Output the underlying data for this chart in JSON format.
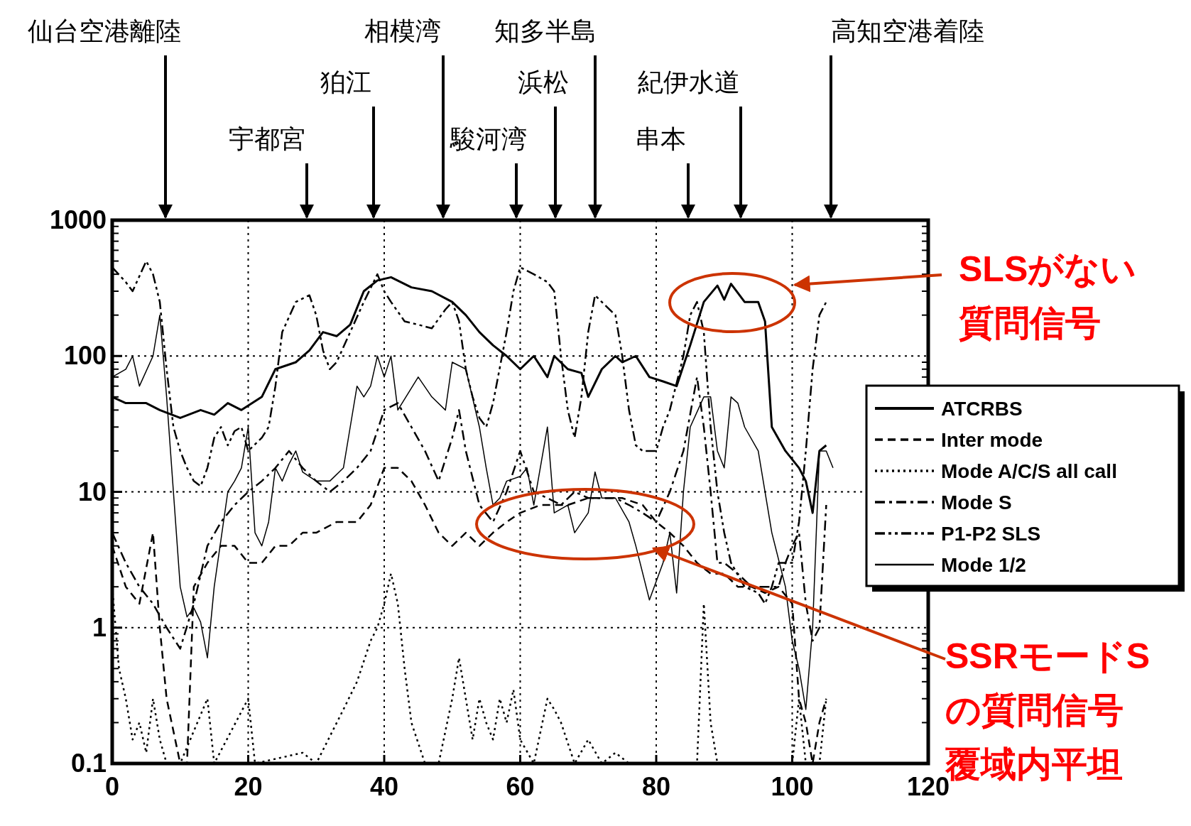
{
  "chart_data": {
    "type": "line",
    "log": "y",
    "xlim": [
      0,
      120
    ],
    "xticks": [
      0,
      20,
      40,
      60,
      80,
      100,
      120
    ],
    "ylim": [
      0.1,
      1000
    ],
    "yticks": [
      0.1,
      1,
      10,
      100,
      1000
    ],
    "grid": true,
    "legend": "right",
    "series": [
      {
        "name": "ATCRBS",
        "color": "#000000",
        "line_style": "solid",
        "x": [
          0,
          2,
          5,
          7,
          10,
          13,
          15,
          17,
          19,
          22,
          24,
          27,
          29,
          31,
          33,
          35,
          37,
          39,
          41,
          44,
          47,
          50,
          52,
          54,
          56,
          58,
          60,
          62,
          64,
          65,
          67,
          69,
          70,
          72,
          74,
          75,
          77,
          79,
          81,
          83,
          85,
          87,
          89,
          90,
          91,
          93,
          95,
          96,
          97,
          99,
          101,
          102,
          103,
          104,
          105
        ],
        "values": [
          50,
          45,
          45,
          40,
          35,
          40,
          37,
          45,
          40,
          50,
          80,
          90,
          110,
          150,
          140,
          170,
          300,
          360,
          380,
          320,
          300,
          250,
          200,
          150,
          120,
          100,
          80,
          100,
          70,
          100,
          80,
          75,
          50,
          80,
          100,
          90,
          100,
          70,
          65,
          60,
          120,
          250,
          330,
          260,
          340,
          250,
          250,
          180,
          30,
          20,
          15,
          12,
          7,
          20,
          22
        ]
      },
      {
        "name": "Inter mode",
        "color": "#000000",
        "line_style": "dashed",
        "x": [
          0,
          2,
          4,
          6,
          7,
          8,
          10,
          11,
          12,
          14,
          16,
          18,
          20,
          22,
          24,
          26,
          28,
          30,
          33,
          36,
          38,
          40,
          42,
          44,
          46,
          48,
          50,
          52,
          54,
          56,
          58,
          60,
          63,
          65,
          67,
          70,
          72,
          75,
          78,
          80,
          82,
          84,
          86,
          88,
          90,
          92,
          94,
          96,
          98,
          100,
          101,
          102,
          103,
          104,
          105
        ],
        "values": [
          4,
          2,
          1.5,
          5,
          1,
          0.3,
          0.1,
          0.1,
          2,
          3,
          4,
          4,
          3,
          3,
          4,
          4,
          5,
          5,
          6,
          6,
          8,
          15,
          15,
          12,
          8,
          5,
          4,
          5,
          4,
          5,
          6,
          7,
          8,
          8,
          8,
          9,
          9,
          9,
          8,
          6,
          5,
          4,
          3,
          2.5,
          2.5,
          2,
          2,
          1.8,
          2,
          1.5,
          0.3,
          0.2,
          0.1,
          0.2,
          0.3
        ]
      },
      {
        "name": "Mode A/C/S all call",
        "color": "#000000",
        "line_style": "dotted",
        "x": [
          0,
          1,
          2,
          3,
          4,
          5,
          6,
          7,
          8,
          10,
          14,
          15,
          20,
          21,
          28,
          30,
          34,
          36,
          38,
          39,
          40,
          41,
          42,
          43,
          44,
          46,
          48,
          50,
          51,
          52,
          53,
          54,
          55,
          56,
          57,
          58,
          59,
          60,
          62,
          64,
          65,
          66,
          68,
          70,
          72,
          74,
          76,
          80,
          86,
          87,
          88,
          89,
          100,
          101,
          102,
          104,
          105
        ],
        "values": [
          2,
          0.5,
          0.3,
          0.15,
          0.2,
          0.12,
          0.3,
          0.15,
          0.1,
          0.1,
          0.3,
          0.1,
          0.3,
          0.1,
          0.12,
          0.1,
          0.25,
          0.4,
          0.8,
          1,
          1.5,
          2.5,
          1.5,
          0.5,
          0.2,
          0.1,
          0.1,
          0.3,
          0.6,
          0.3,
          0.15,
          0.3,
          0.2,
          0.15,
          0.3,
          0.2,
          0.35,
          0.15,
          0.1,
          0.3,
          0.25,
          0.2,
          0.1,
          0.15,
          0.1,
          0.12,
          0.1,
          0.1,
          0.1,
          1.5,
          0.2,
          0.1,
          0.1,
          0.3,
          0.1,
          0.1,
          0.3
        ]
      },
      {
        "name": "Mode S",
        "color": "#000000",
        "line_style": "dashdot",
        "x": [
          0,
          2,
          4,
          6,
          8,
          10,
          12,
          14,
          16,
          18,
          20,
          22,
          24,
          26,
          28,
          30,
          32,
          34,
          36,
          38,
          40,
          42,
          44,
          46,
          48,
          50,
          51,
          52,
          54,
          56,
          58,
          60,
          62,
          64,
          66,
          68,
          70,
          72,
          74,
          76,
          78,
          80,
          82,
          84,
          86,
          87,
          88,
          89,
          90,
          92,
          94,
          96,
          98,
          99,
          100,
          101,
          102,
          103,
          104,
          105
        ],
        "values": [
          5,
          3,
          2,
          1.5,
          1,
          0.7,
          1.5,
          4,
          6,
          8,
          10,
          12,
          15,
          20,
          15,
          12,
          10,
          12,
          15,
          20,
          40,
          45,
          30,
          20,
          12,
          25,
          40,
          20,
          8,
          6,
          10,
          20,
          10,
          9,
          8,
          10,
          9,
          9,
          9,
          8,
          7,
          6,
          10,
          20,
          70,
          30,
          10,
          3,
          3,
          2.5,
          2,
          2,
          2,
          3,
          4,
          5,
          1.5,
          0.8,
          1,
          8
        ]
      },
      {
        "name": "P1-P2 SLS",
        "color": "#000000",
        "line_style": "dashdotdot",
        "x": [
          0,
          2,
          3,
          5,
          6,
          7,
          8,
          9,
          10,
          11,
          12,
          13,
          14,
          15,
          16,
          17,
          18,
          19,
          20,
          22,
          23,
          24,
          25,
          27,
          29,
          30,
          31,
          32,
          33,
          35,
          37,
          39,
          40,
          41,
          43,
          45,
          47,
          49,
          50,
          51,
          52,
          53,
          54,
          55,
          56,
          58,
          59,
          60,
          62,
          64,
          65,
          66,
          67,
          68,
          69,
          70,
          71,
          72,
          74,
          75,
          76,
          77,
          78,
          80,
          81,
          82,
          84,
          85,
          86,
          87,
          88,
          89,
          90,
          91,
          93,
          95,
          96,
          97,
          98,
          99,
          100,
          101,
          102,
          103,
          104,
          105
        ],
        "values": [
          450,
          350,
          300,
          500,
          400,
          250,
          80,
          30,
          20,
          15,
          12,
          11,
          15,
          25,
          30,
          22,
          28,
          30,
          20,
          25,
          30,
          60,
          150,
          250,
          280,
          200,
          110,
          80,
          90,
          150,
          250,
          400,
          300,
          250,
          180,
          170,
          160,
          220,
          250,
          180,
          80,
          50,
          35,
          30,
          45,
          150,
          300,
          450,
          400,
          350,
          300,
          100,
          40,
          25,
          50,
          150,
          280,
          250,
          200,
          100,
          40,
          22,
          20,
          20,
          30,
          40,
          100,
          200,
          250,
          150,
          30,
          10,
          5,
          3,
          2,
          1.8,
          1.5,
          2,
          3,
          3,
          3,
          6,
          20,
          80,
          200,
          250
        ]
      },
      {
        "name": "Mode 1/2",
        "color": "#000000",
        "line_style": "solid",
        "x": [
          0,
          2,
          3,
          4,
          6,
          7,
          8,
          9,
          10,
          11,
          12,
          13,
          14,
          15,
          17,
          18,
          19,
          20,
          21,
          22,
          23,
          24,
          25,
          26,
          27,
          28,
          30,
          32,
          34,
          35,
          36,
          37,
          38,
          39,
          40,
          41,
          42,
          45,
          47,
          49,
          50,
          52,
          54,
          55,
          56,
          57,
          58,
          60,
          61,
          62,
          64,
          65,
          67,
          68,
          70,
          71,
          72,
          74,
          76,
          77,
          79,
          81,
          82,
          83,
          84,
          85,
          87,
          88,
          89,
          90,
          91,
          92,
          93,
          95,
          97,
          99,
          100,
          101,
          102,
          103,
          104,
          105,
          106
        ],
        "values": [
          70,
          80,
          100,
          60,
          100,
          200,
          50,
          10,
          2,
          1.2,
          1.4,
          1.1,
          0.6,
          2,
          10,
          12,
          15,
          30,
          5,
          4,
          6,
          15,
          12,
          16,
          20,
          14,
          12,
          12,
          15,
          30,
          60,
          50,
          60,
          100,
          70,
          100,
          40,
          70,
          50,
          40,
          90,
          80,
          30,
          15,
          8,
          9,
          12,
          13,
          15,
          8,
          30,
          7,
          8,
          5,
          7,
          14,
          9,
          9,
          6,
          4,
          1.6,
          3,
          5,
          1.8,
          10,
          30,
          50,
          50,
          20,
          15,
          50,
          45,
          30,
          20,
          5,
          2,
          0.8,
          0.5,
          0.25,
          1,
          20,
          20,
          15
        ]
      }
    ],
    "annotations": [
      "仙台空港離陸",
      "宇都宮",
      "狛江",
      "相模湾",
      "駿河湾",
      "浜松",
      "知多半島",
      "串本",
      "紀伊水道",
      "高知空港着陸",
      "SLSがない質問信号",
      "SSRモードSの質問信号覆域内平坦"
    ]
  }
}
